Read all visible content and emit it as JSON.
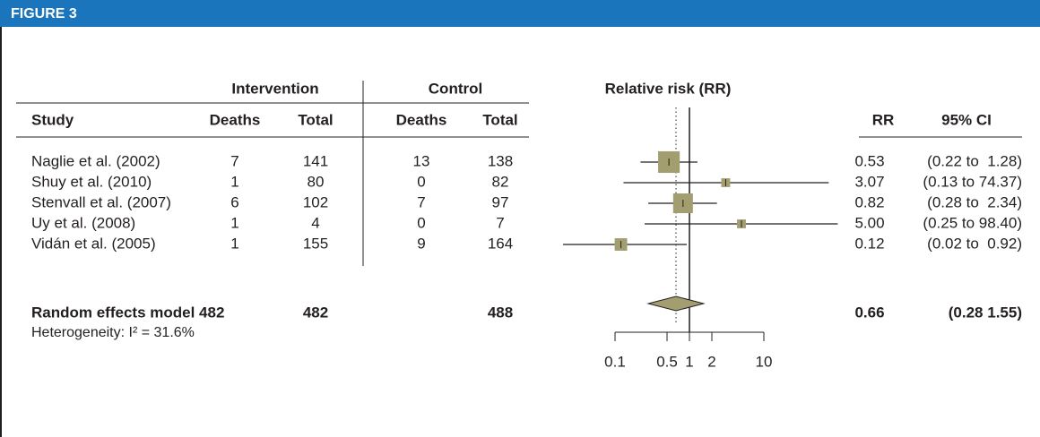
{
  "header": {
    "title": "FIGURE 3"
  },
  "table": {
    "group_headers": [
      "Intervention",
      "Control"
    ],
    "columns": [
      "Study",
      "Deaths",
      "Total",
      "Deaths",
      "Total"
    ],
    "rows": [
      [
        7,
        141,
        13,
        138
      ],
      [
        1,
        80,
        0,
        82
      ],
      [
        6,
        102,
        7,
        97
      ],
      [
        1,
        4,
        0,
        7
      ],
      [
        1,
        155,
        9,
        164
      ]
    ],
    "summary": {
      "label": "Random effects model 482",
      "intervention_total": 482,
      "control_total": 488
    },
    "heterogeneity": "Heterogeneity: I² = 31.6%"
  },
  "chart_data": {
    "type": "forest",
    "title": "Relative risk (RR)",
    "categories": [
      "Naglie et al. (2002)",
      "Shuy et al. (2010)",
      "Stenvall et al. (2007)",
      "Uy et al. (2008)",
      "Vidán et al. (2005)"
    ],
    "columns": [
      "RR",
      "95% CI"
    ],
    "rr": [
      0.53,
      3.07,
      0.82,
      5.0,
      0.12
    ],
    "value_labels": [
      "0.53",
      "3.07",
      "0.82",
      "5.00",
      "0.12"
    ],
    "lower": [
      0.22,
      0.13,
      0.28,
      0.25,
      0.02
    ],
    "upper": [
      1.28,
      74.37,
      2.34,
      98.4,
      0.92
    ],
    "ci_labels": [
      "(0.22 to  1.28)",
      "(0.13 to 74.37)",
      "(0.28 to  2.34)",
      "(0.25 to 98.40)",
      "(0.02 to  0.92)"
    ],
    "weights": [
      30,
      5,
      25,
      5,
      10
    ],
    "summary": {
      "rr": 0.66,
      "lower": 0.28,
      "upper": 1.55,
      "ci_label": "(0.28  1.55)"
    },
    "color": "#a39e70",
    "log_scale": true,
    "xlim": [
      0.1,
      10
    ],
    "xticks": [
      0.1,
      0.5,
      1,
      2,
      10
    ]
  }
}
